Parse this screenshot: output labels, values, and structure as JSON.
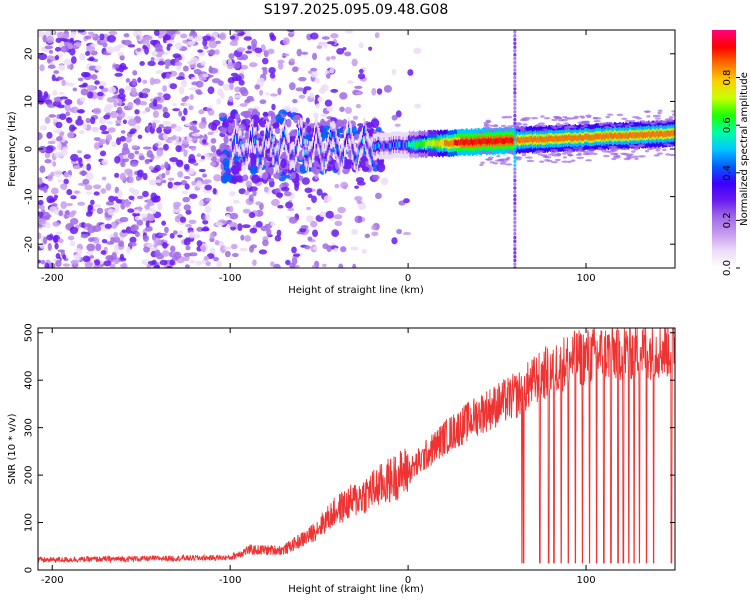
{
  "title": "S197.2025.095.09.48.G08",
  "colors": {
    "spectrum": [
      "#ffffff",
      "#ecdcf7",
      "#c79bee",
      "#a06ae6",
      "#6a1af0",
      "#3a00ff",
      "#0060ff",
      "#00c8ff",
      "#00ffa0",
      "#20ff00",
      "#c8ff00",
      "#ffd000",
      "#ff7000",
      "#ff0000",
      "#ff0080"
    ],
    "snr_line": "#ee3333",
    "axes": "#000000"
  },
  "chart_data": [
    {
      "type": "heatmap",
      "xlabel": "Height of straight line (km)",
      "ylabel": "Frequency (Hz)",
      "xlim": [
        -208,
        150
      ],
      "ylim": [
        -25,
        25
      ],
      "xticks": [
        -200,
        -100,
        0,
        100
      ],
      "yticks": [
        -20,
        -10,
        0,
        10,
        20
      ],
      "colorbar": {
        "label": "Normalized spectral amplitude",
        "range": [
          0,
          1
        ],
        "ticks": [
          0.0,
          0.2,
          0.4,
          0.6,
          0.8
        ]
      },
      "ridge": {
        "frequency_start_hz": 0.5,
        "frequency_end_hz": 3.2,
        "strong_segment_km": [
          0,
          150
        ],
        "noise_zone_km": [
          -208,
          -30
        ],
        "vertical_spike_km": 60
      }
    },
    {
      "type": "line",
      "xlabel": "Height of straight line (km)",
      "ylabel": "SNR (10 * v/v)",
      "xlim": [
        -208,
        150
      ],
      "ylim": [
        0,
        510
      ],
      "xticks": [
        -200,
        -100,
        0,
        100
      ],
      "yticks": [
        0,
        100,
        200,
        300,
        400,
        500
      ],
      "trend_points": [
        {
          "x": -208,
          "y": 20
        },
        {
          "x": -100,
          "y": 25
        },
        {
          "x": -90,
          "y": 40
        },
        {
          "x": -70,
          "y": 40
        },
        {
          "x": -55,
          "y": 70
        },
        {
          "x": -40,
          "y": 120
        },
        {
          "x": -20,
          "y": 160
        },
        {
          "x": 0,
          "y": 200
        },
        {
          "x": 20,
          "y": 270
        },
        {
          "x": 40,
          "y": 320
        },
        {
          "x": 62,
          "y": 360
        },
        {
          "x": 75,
          "y": 400
        },
        {
          "x": 90,
          "y": 430
        },
        {
          "x": 110,
          "y": 445
        },
        {
          "x": 150,
          "y": 455
        }
      ],
      "dropouts_km": [
        64,
        65,
        74,
        79,
        82,
        86,
        90,
        94,
        98,
        102,
        106,
        110,
        114,
        118,
        121,
        124,
        127,
        130,
        134,
        138,
        148
      ]
    }
  ]
}
